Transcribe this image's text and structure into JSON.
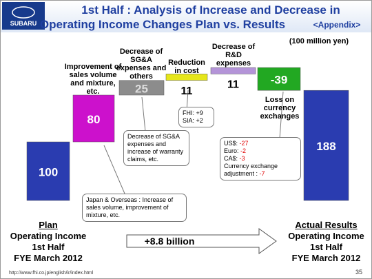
{
  "header": {
    "logo": "SUBARU",
    "title_line1": "1st Half : Analysis of Increase and Decrease in",
    "title_line2": "Operating Income Changes Plan vs. Results",
    "title_tag": "<Appendix>"
  },
  "chart_data": {
    "type": "waterfall",
    "unit": "(100 million yen)",
    "categories": [
      "Plan",
      "Improvement of sales volume and mixture, etc.",
      "Decrease of SG&A expenses and others",
      "Reduction in cost",
      "Decrease of R&D expenses",
      "Loss on currency exchanges",
      "Actual Results"
    ],
    "total_subtitle": [
      "Operating Income",
      "1st Half",
      "FYE March 2012"
    ],
    "values": [
      100,
      80,
      25,
      11,
      11,
      -39,
      188
    ],
    "colors": [
      "#2a3cb0",
      "#cc11cc",
      "#8c8c8c",
      "#e6e61a",
      "#b494d8",
      "#22a822",
      "#2a3cb0"
    ],
    "annotations": {
      "cost": [
        "FHI: +9",
        "SIA: +2"
      ],
      "sga": "Decrease of SG&A expenses and increase of warranty claims, etc.",
      "sales": "Japan & Overseas : Increase of sales volume, improvement of mixture, etc.",
      "currency": [
        {
          "label": "US$:",
          "value": "-27"
        },
        {
          "label": "Euro:",
          "value": "-2"
        },
        {
          "label": "CA$:",
          "value": "-3"
        },
        {
          "label": "Currency exchange adjustment :",
          "value": "-7"
        }
      ],
      "arrow": "+8.8 billion"
    }
  },
  "footer": {
    "url": "http://www.fhi.co.jp/english/ir/index.html",
    "page": "35"
  }
}
